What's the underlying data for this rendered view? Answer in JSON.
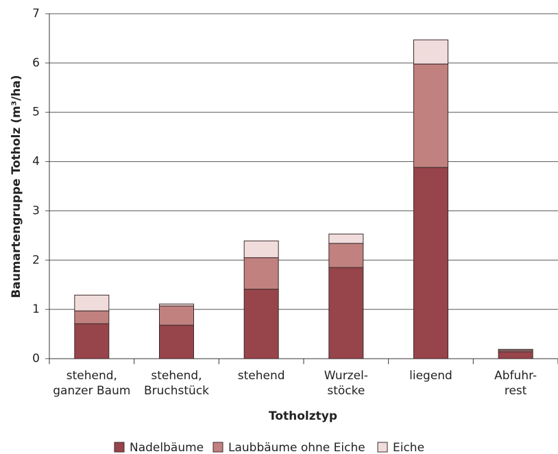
{
  "chart_data": {
    "type": "stacked_bar",
    "y_label": "Baumartengruppe Totholz (m³/ha)",
    "x_label": "Totholztyp",
    "categories": [
      "stehend,\nganzer Baum",
      "stehend,\nBruchstück",
      "stehend",
      "Wurzel-\nstöcke",
      "liegend",
      "Abfuhr-\nrest"
    ],
    "series": [
      {
        "name": "Nadelbäume",
        "color": "#98444b",
        "values": [
          0.71,
          0.68,
          1.41,
          1.85,
          3.88,
          0.14
        ]
      },
      {
        "name": "Laubbäume ohne Eiche",
        "color": "#c0817f",
        "values": [
          0.26,
          0.39,
          0.64,
          0.49,
          2.1,
          0.03
        ]
      },
      {
        "name": "Eiche",
        "color": "#f1dcdc",
        "values": [
          0.32,
          0.04,
          0.34,
          0.19,
          0.49,
          0.02
        ]
      }
    ],
    "ylim": [
      0,
      7
    ],
    "yticks": [
      0,
      1,
      2,
      3,
      4,
      5,
      6,
      7
    ],
    "grid": true,
    "legend": "bottom"
  }
}
